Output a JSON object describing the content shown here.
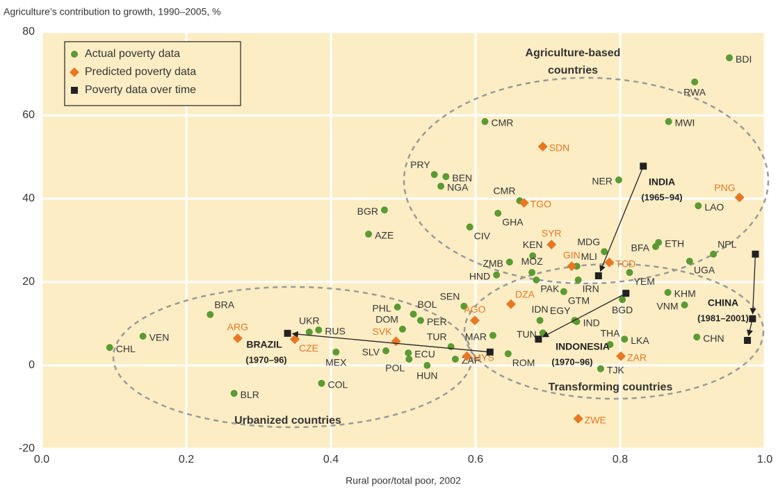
{
  "chart_data": {
    "type": "scatter",
    "title": "Agriculture’s contribution to growth, 1990–2005, %",
    "x_label": "Rural poor/total poor, 2002",
    "xlim": [
      0,
      1
    ],
    "ylim": [
      -20,
      80
    ],
    "xticks": [
      {
        "value": 0,
        "label": "0.0"
      },
      0.2,
      0.4,
      0.6,
      0.8,
      {
        "value": 1,
        "label": "1.0"
      }
    ],
    "yticks": [
      -20,
      0,
      20,
      40,
      60,
      80
    ],
    "grid": true,
    "legend": "upper left",
    "series": [
      {
        "name": "Actual poverty data",
        "color": "#5c9a33",
        "marker": "circle",
        "labels": [
          "BDI",
          "RWA",
          "MWI",
          "CMR",
          "PRY",
          "BEN",
          "NGA",
          "NER",
          "CMR",
          "LAO",
          "BGR",
          "GHA",
          "CIV",
          "AZE",
          "NPL",
          "ETH",
          "BFA",
          "MDG",
          "KEN",
          "ZMB",
          "UGA",
          "MOZ",
          "MLI",
          "HND",
          "PAK",
          "IRN",
          "YEM",
          "GTM",
          "KHM",
          "BGD",
          "VNM",
          "SEN",
          "PHL",
          "BOL",
          "BRA",
          "PER",
          "IDN",
          "EGY",
          "IND",
          "DOM",
          "VEN",
          "RUS",
          "UKR",
          "MAR",
          "TUN",
          "CHN",
          "LKA",
          "THA",
          "CHL",
          "TUR",
          "SLV",
          "MEX",
          "ECU",
          "POL",
          "ZAF",
          "ROM",
          "HUN",
          "TJK",
          "COL",
          "BLR"
        ],
        "x": [
          0.951,
          0.903,
          0.867,
          0.613,
          0.543,
          0.559,
          0.552,
          0.798,
          0.661,
          0.908,
          0.474,
          0.631,
          0.592,
          0.452,
          0.929,
          0.853,
          0.849,
          0.778,
          0.679,
          0.647,
          0.896,
          0.678,
          0.74,
          0.629,
          0.684,
          0.742,
          0.813,
          0.722,
          0.866,
          0.803,
          0.889,
          0.584,
          0.492,
          0.514,
          0.233,
          0.524,
          0.689,
          0.737,
          0.74,
          0.499,
          0.14,
          0.383,
          0.37,
          0.624,
          0.693,
          0.906,
          0.806,
          0.786,
          0.094,
          0.566,
          0.476,
          0.407,
          0.507,
          0.508,
          0.572,
          0.645,
          0.533,
          0.773,
          0.387,
          0.266
        ],
        "values": [
          73.8,
          68,
          58.5,
          58.5,
          45.8,
          45.3,
          43,
          44.5,
          39.5,
          38.3,
          37.3,
          36.5,
          33.2,
          31.5,
          26.7,
          29.5,
          28.5,
          27.3,
          26.3,
          24.8,
          25,
          22.3,
          23.8,
          21.7,
          20.5,
          20.5,
          22.3,
          17.7,
          17.5,
          15.8,
          14.5,
          14.2,
          14,
          12.3,
          12.2,
          10.8,
          10.8,
          10.8,
          10.5,
          8.7,
          7,
          8.5,
          8,
          7.2,
          7.8,
          6.8,
          6.3,
          5,
          4.3,
          4.5,
          3.5,
          3.2,
          3,
          1.5,
          1.5,
          2.8,
          0,
          -0.8,
          -4.3,
          -6.7
        ]
      },
      {
        "name": "Predicted poverty data",
        "color": "#e87722",
        "marker": "diamond",
        "labels": [
          "SDN",
          "PNG",
          "TGO",
          "SYR",
          "GIN",
          "TCD",
          "DZA",
          "AGO",
          "ARG",
          "CZE",
          "SVK",
          "MYS",
          "ZAR",
          "ZWE"
        ],
        "x": [
          0.693,
          0.965,
          0.667,
          0.705,
          0.733,
          0.785,
          0.649,
          0.599,
          0.271,
          0.35,
          0.49,
          0.588,
          0.801,
          0.742
        ],
        "values": [
          52.5,
          40.3,
          39,
          29,
          23.8,
          24.7,
          14.7,
          10.8,
          6.5,
          6.3,
          5.8,
          2.2,
          2.2,
          -12.8
        ]
      },
      {
        "name": "Poverty data over time",
        "color": "#222222",
        "marker": "square",
        "groups": [
          {
            "label": "INDIA",
            "period": "(1965–94)",
            "x": [
              0.832,
              0.77
            ],
            "values": [
              47.8,
              21.5
            ]
          },
          {
            "label": "INDONESIA",
            "period": "(1970–96)",
            "x": [
              0.808,
              0.687
            ],
            "values": [
              17.3,
              6.3
            ]
          },
          {
            "label": "BRAZIL",
            "period": "(1970–96)",
            "x": [
              0.62,
              0.34
            ],
            "values": [
              3.2,
              7.7
            ]
          },
          {
            "label": "CHINA",
            "period": "(1981–2001)",
            "x": [
              0.987,
              0.983,
              0.976
            ],
            "values": [
              26.7,
              11.2,
              6
            ]
          }
        ]
      }
    ],
    "annotations": [
      {
        "lines": [
          "Agriculture-based",
          "countries"
        ]
      },
      {
        "lines": [
          "Transforming countries"
        ]
      },
      {
        "lines": [
          "Urbanized countries"
        ]
      }
    ]
  }
}
